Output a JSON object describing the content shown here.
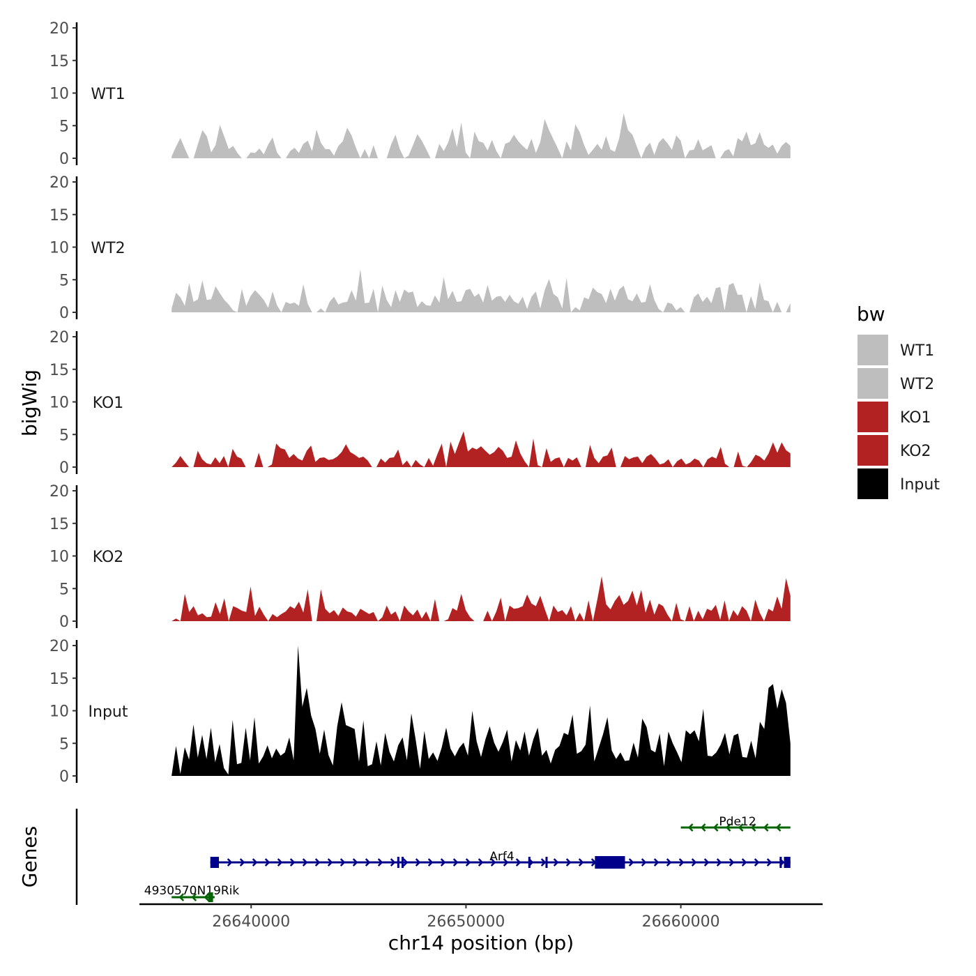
{
  "chart_data": {
    "type": "area",
    "title": "",
    "xlabel": "chr14 position (bp)",
    "ylabel": "bigWig",
    "genes_label": "Genes",
    "x_ticks": [
      26640000,
      26650000,
      26660000
    ],
    "x_tick_labels": [
      "26640000",
      "26650000",
      "26660000"
    ],
    "xlim": [
      26634800,
      26666600
    ],
    "data_xlim": [
      26636300,
      26665100
    ],
    "ylim": [
      0,
      20
    ],
    "y_ticks": [
      0,
      5,
      10,
      15,
      20
    ],
    "y_tick_labels": [
      "0",
      "5",
      "10",
      "15",
      "20"
    ],
    "legend": {
      "title": "bw",
      "position": "right",
      "entries": [
        {
          "label": "WT1",
          "color": "#bebebe"
        },
        {
          "label": "WT2",
          "color": "#bebebe"
        },
        {
          "label": "KO1",
          "color": "#b22222"
        },
        {
          "label": "KO2",
          "color": "#b22222"
        },
        {
          "label": "Input",
          "color": "#000000"
        }
      ]
    },
    "series": [
      {
        "name": "WT1",
        "color": "#bebebe",
        "values": [
          0.3,
          1.8,
          3.1,
          1.5,
          0,
          0,
          2.2,
          4.3,
          3.4,
          0.9,
          2.0,
          5.1,
          3.3,
          1.4,
          1.9,
          0.8,
          0,
          0,
          0.9,
          0.8,
          1.5,
          0.6,
          2.1,
          3.2,
          0.9,
          0,
          0,
          1.1,
          1.6,
          0.8,
          2.2,
          2.7,
          1.1,
          4.4,
          2.4,
          1.4,
          1.4,
          0.4,
          1.9,
          2.6,
          4.7,
          3.5,
          1.6,
          0,
          1.4,
          0,
          2.0,
          0,
          0,
          0,
          2.1,
          3.6,
          1.4,
          0,
          0.4,
          2.0,
          3.7,
          2.7,
          1.4,
          0,
          0,
          2.2,
          1.1,
          2.4,
          4.6,
          1.7,
          5.5,
          0.9,
          0,
          4.1,
          2.6,
          2.4,
          1.2,
          2.8,
          1.1,
          0,
          2.2,
          2.5,
          3.6,
          2.6,
          1.9,
          1.3,
          3.0,
          0.8,
          2.5,
          6.0,
          4.3,
          2.9,
          1.5,
          0,
          2.6,
          1.2,
          5.2,
          4.0,
          2.0,
          0.5,
          1.3,
          2.2,
          1.3,
          3.4,
          1.3,
          1.0,
          3.1,
          6.9,
          4.3,
          3.6,
          1.8,
          0,
          1.6,
          2.4,
          0.5,
          2.4,
          3.1,
          2.3,
          1.3,
          3.5,
          2.7,
          0,
          1.2,
          1.3,
          2.9,
          1.2,
          1.6,
          2.0,
          0,
          0,
          1.1,
          1.4,
          0.3,
          3.1,
          2.6,
          4.1,
          2.0,
          2.3,
          4.0,
          2.1,
          1.6,
          2.1,
          0.7,
          1.9,
          2.5,
          1.9
        ]
      },
      {
        "name": "WT2",
        "color": "#bebebe",
        "values": [
          0.6,
          3.0,
          2.3,
          1.0,
          4.5,
          1.6,
          2.0,
          4.9,
          1.9,
          2.0,
          4.0,
          2.9,
          1.9,
          1.2,
          0.3,
          0,
          3.6,
          1.0,
          2.5,
          3.4,
          2.7,
          1.9,
          0.7,
          3.2,
          1.1,
          0,
          1.6,
          1.3,
          1.5,
          1.0,
          4.3,
          1.3,
          0,
          0,
          0.6,
          0,
          1.6,
          2.4,
          1.2,
          1.5,
          1.6,
          3.4,
          1.8,
          6.6,
          1.4,
          1.5,
          3.6,
          0,
          4.1,
          1.9,
          0.8,
          3.4,
          1.6,
          3.5,
          3.0,
          3.2,
          0.8,
          1.7,
          1.1,
          1.0,
          2.6,
          1.5,
          5.4,
          2.0,
          3.3,
          1.6,
          1.7,
          3.4,
          3.6,
          2.4,
          2.9,
          1.5,
          4.2,
          1.8,
          2.4,
          2.5,
          1.6,
          2.7,
          1.7,
          1.3,
          2.4,
          0.5,
          2.4,
          3.2,
          0.6,
          3.4,
          5.1,
          2.8,
          2.3,
          0.6,
          5.3,
          0,
          0.8,
          0.3,
          2.3,
          2.0,
          3.8,
          3.1,
          2.8,
          1.4,
          3.6,
          1.8,
          3.5,
          4.1,
          2.0,
          1.7,
          2.9,
          1.5,
          1.6,
          4.3,
          1.9,
          0.5,
          0,
          1.5,
          1.3,
          0.3,
          0.8,
          0,
          0,
          2.3,
          2.9,
          1.6,
          2.4,
          1.4,
          3.7,
          3.9,
          0.3,
          4.2,
          4.5,
          2.7,
          2.7,
          0,
          2.5,
          0.5,
          4.6,
          1.9,
          1.7,
          0,
          1.6,
          0,
          0,
          1.4
        ]
      },
      {
        "name": "KO1",
        "color": "#b22222",
        "values": [
          0,
          0.7,
          1.7,
          0.8,
          0,
          0,
          2.5,
          1.2,
          0.6,
          0.4,
          1.5,
          0.6,
          1.7,
          0,
          2.8,
          1.6,
          1.3,
          0,
          0,
          0,
          2.2,
          0,
          0,
          0.4,
          3.6,
          2.9,
          2.7,
          1.4,
          2.0,
          1.3,
          1.0,
          2.5,
          3.3,
          0.8,
          1.4,
          1.5,
          1.1,
          1.2,
          1.6,
          2.3,
          3.5,
          2.3,
          1.9,
          1.4,
          1.6,
          1.0,
          0,
          0,
          1.3,
          0.7,
          1.4,
          1.5,
          2.7,
          0.3,
          1.0,
          0,
          1.1,
          0.4,
          0,
          1.4,
          0.2,
          2.0,
          3.6,
          0,
          3.9,
          2.0,
          3.8,
          5.5,
          2.4,
          3.0,
          2.7,
          3.2,
          2.5,
          1.9,
          2.3,
          3.1,
          2.5,
          1.4,
          1.6,
          4.1,
          2.1,
          0.9,
          0,
          4.4,
          0.3,
          0,
          2.9,
          0.8,
          1.3,
          1.5,
          0,
          1.4,
          1.0,
          1.5,
          0,
          0,
          3.4,
          1.4,
          0.6,
          1.6,
          1.8,
          3.0,
          0,
          0,
          1.7,
          1.2,
          1.5,
          1.6,
          0.6,
          1.6,
          2.0,
          1.3,
          0.4,
          0.6,
          1.2,
          0,
          0.9,
          1.3,
          0.4,
          0.7,
          1.3,
          1.0,
          0,
          1.2,
          1.6,
          1.3,
          3.1,
          0.5,
          0,
          0,
          2.4,
          0.2,
          0,
          0.8,
          1.9,
          1.6,
          1.0,
          2.1,
          3.8,
          2.2,
          3.8,
          2.6,
          2.1
        ]
      },
      {
        "name": "KO2",
        "color": "#b22222",
        "values": [
          0,
          0.4,
          0,
          4.2,
          1.4,
          2.3,
          0.9,
          1.2,
          0.6,
          0.7,
          2.9,
          1.1,
          3.5,
          0,
          2.3,
          2.0,
          1.6,
          1.4,
          5.3,
          0.8,
          2.2,
          1.0,
          0,
          1.1,
          0.6,
          1.1,
          1.5,
          2.3,
          1.9,
          3.0,
          1.3,
          4.9,
          0,
          0,
          4.9,
          1.9,
          1.2,
          1.7,
          0.8,
          2.1,
          1.5,
          1.3,
          0.7,
          1.9,
          1.5,
          1.1,
          1.4,
          0,
          0.6,
          2.4,
          1.0,
          1.5,
          0,
          2.4,
          1.5,
          0.9,
          1.8,
          0.4,
          1.5,
          0,
          3.4,
          0,
          0,
          0.3,
          2.0,
          1.6,
          4.2,
          1.7,
          0.6,
          0,
          0,
          0,
          1.6,
          0,
          1.5,
          3.6,
          0,
          2.4,
          1.9,
          2.0,
          2.3,
          4.1,
          2.7,
          2.3,
          3.9,
          1.9,
          0,
          2.4,
          1.4,
          1.7,
          0.9,
          2.3,
          0,
          1.3,
          0,
          3.2,
          0,
          3.3,
          6.9,
          2.6,
          1.8,
          3.1,
          4.0,
          2.5,
          3.1,
          4.7,
          2.4,
          4.8,
          1.3,
          3.3,
          1.0,
          2.7,
          2.3,
          1.0,
          0,
          2.8,
          0.3,
          0,
          2.3,
          0,
          1.6,
          0.3,
          1.9,
          1.6,
          2.5,
          0.2,
          3.2,
          0,
          1.7,
          0.8,
          2.3,
          1.6,
          0,
          3.3,
          1.3,
          0,
          1.9,
          1.5,
          3.8,
          1.9,
          6.6,
          3.9
        ]
      },
      {
        "name": "Input",
        "color": "#000000",
        "values": [
          0.1,
          4.6,
          0.3,
          4.4,
          2.5,
          7.9,
          2.8,
          6.3,
          2.6,
          7.4,
          2.1,
          4.9,
          1.2,
          0.2,
          8.6,
          1.8,
          2.0,
          7.4,
          2.4,
          9.0,
          1.9,
          3.0,
          4.7,
          2.7,
          4.2,
          3.1,
          3.6,
          5.9,
          2.4,
          20.0,
          10.6,
          13.5,
          9.3,
          7.2,
          3.4,
          7.1,
          3.2,
          1.6,
          7.6,
          11.3,
          7.8,
          7.5,
          7.2,
          2.2,
          8.5,
          1.5,
          1.8,
          5.3,
          1.6,
          6.6,
          3.7,
          2.2,
          4.7,
          5.9,
          2.4,
          9.6,
          5.6,
          1.1,
          6.9,
          2.6,
          3.6,
          2.3,
          4.4,
          7.4,
          4.2,
          3.0,
          4.3,
          5.1,
          3.1,
          10.0,
          5.3,
          2.9,
          5.6,
          7.6,
          5.1,
          3.7,
          5.2,
          7.1,
          2.2,
          5.5,
          3.9,
          6.8,
          3.1,
          5.6,
          7.4,
          3.1,
          4.0,
          1.9,
          4.0,
          4.6,
          6.6,
          6.3,
          9.4,
          3.4,
          3.8,
          4.8,
          10.8,
          2.2,
          4.3,
          6.4,
          9.0,
          3.9,
          2.6,
          3.6,
          2.3,
          2.4,
          5.1,
          2.8,
          8.8,
          7.5,
          4.0,
          3.6,
          6.5,
          1.5,
          6.8,
          5.0,
          3.6,
          2.1,
          7.0,
          6.4,
          7.0,
          5.3,
          10.3,
          3.1,
          3.0,
          3.6,
          4.8,
          6.6,
          3.3,
          6.2,
          6.5,
          2.9,
          2.8,
          5.4,
          2.7,
          8.3,
          7.2,
          13.5,
          14.1,
          10.3,
          13.3,
          11.2,
          5.0
        ]
      }
    ],
    "genes": [
      {
        "name": "Pde12",
        "strand": "-",
        "start": 26660000,
        "end": 26665100,
        "color": "#006400"
      },
      {
        "name": "Arf4",
        "strand": "+",
        "start": 26638100,
        "end": 26665100,
        "color": "#00008b"
      },
      {
        "name": "4930570N19Rik",
        "strand": "-",
        "start": 26636300,
        "end": 26638300,
        "color": "#006400"
      }
    ]
  }
}
